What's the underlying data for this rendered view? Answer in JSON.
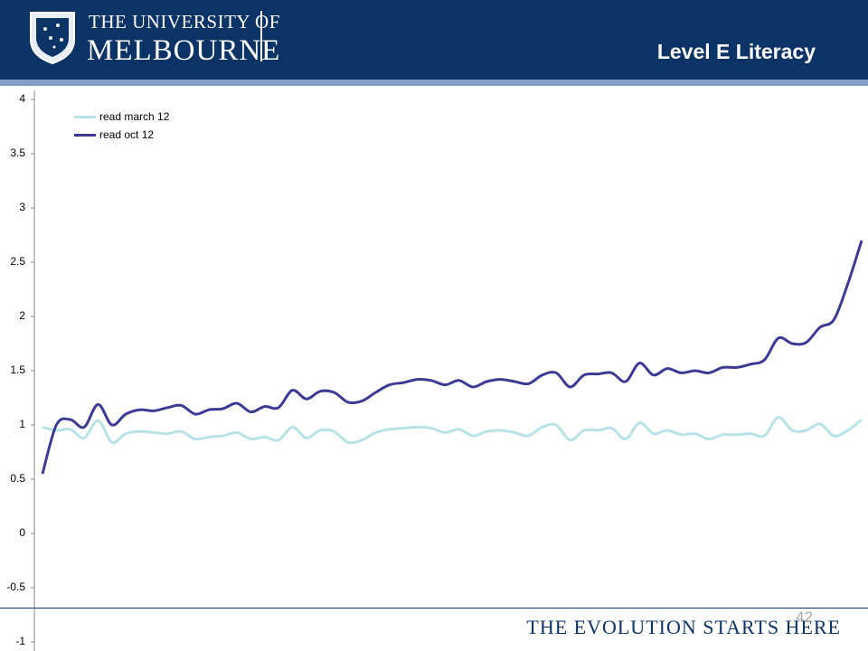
{
  "slide": {
    "university_top": "THE UNIVERSITY OF",
    "university_name": "MELBOURNE",
    "title": "Level E Literacy",
    "tagline": "THE EVOLUTION STARTS HERE",
    "page_number": "42"
  },
  "chart_data": {
    "type": "line",
    "ylim": [
      -1,
      4
    ],
    "yticks": [
      4,
      3.5,
      3,
      2.5,
      2,
      1.5,
      1,
      0.5,
      0,
      -0.5,
      -1
    ],
    "legend": "top-left",
    "series": [
      {
        "name": "read march 12",
        "color": "#b7e3e6",
        "values": [
          0.98,
          0.95,
          0.96,
          0.88,
          1.04,
          0.84,
          0.92,
          0.94,
          0.93,
          0.92,
          0.94,
          0.87,
          0.89,
          0.9,
          0.93,
          0.87,
          0.89,
          0.86,
          0.98,
          0.88,
          0.95,
          0.94,
          0.84,
          0.86,
          0.93,
          0.96,
          0.97,
          0.98,
          0.97,
          0.93,
          0.96,
          0.9,
          0.94,
          0.95,
          0.93,
          0.9,
          0.98,
          1.0,
          0.86,
          0.95,
          0.95,
          0.97,
          0.87,
          1.02,
          0.92,
          0.95,
          0.91,
          0.92,
          0.87,
          0.91,
          0.91,
          0.92,
          0.9,
          1.07,
          0.95,
          0.95,
          1.01,
          0.9,
          0.95,
          1.05
        ]
      },
      {
        "name": "read oct 12",
        "color": "#3b3b96",
        "values": [
          0.55,
          1.0,
          1.05,
          0.98,
          1.19,
          1.0,
          1.1,
          1.14,
          1.13,
          1.16,
          1.18,
          1.1,
          1.14,
          1.15,
          1.2,
          1.12,
          1.17,
          1.16,
          1.32,
          1.24,
          1.31,
          1.3,
          1.21,
          1.22,
          1.3,
          1.37,
          1.39,
          1.42,
          1.41,
          1.37,
          1.41,
          1.35,
          1.4,
          1.42,
          1.4,
          1.38,
          1.46,
          1.48,
          1.35,
          1.46,
          1.47,
          1.48,
          1.4,
          1.57,
          1.46,
          1.52,
          1.48,
          1.5,
          1.48,
          1.53,
          1.53,
          1.56,
          1.6,
          1.8,
          1.75,
          1.76,
          1.9,
          1.97,
          2.3,
          2.7
        ]
      }
    ]
  }
}
